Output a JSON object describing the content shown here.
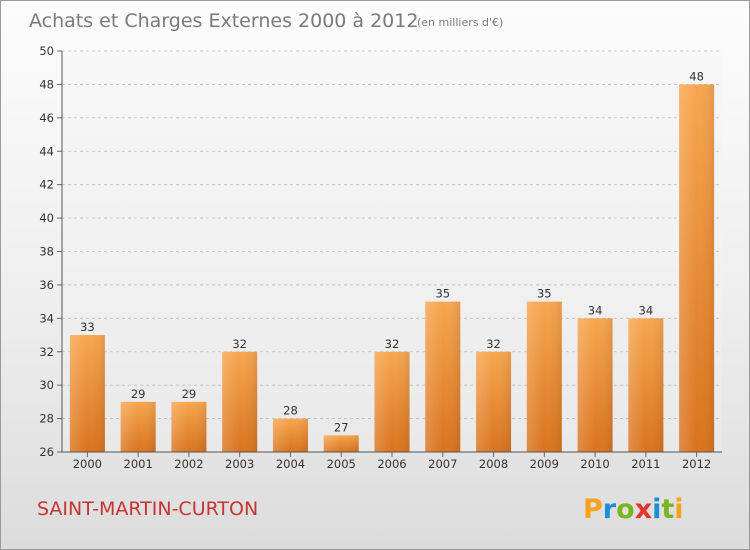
{
  "chart_data": {
    "type": "bar",
    "title": "Achats et Charges Externes 2000 à 2012",
    "subtitle": "(en milliers d'€)",
    "categories": [
      "2000",
      "2001",
      "2002",
      "2003",
      "2004",
      "2005",
      "2006",
      "2007",
      "2008",
      "2009",
      "2010",
      "2011",
      "2012"
    ],
    "values": [
      33,
      29,
      29,
      32,
      28,
      27,
      32,
      35,
      32,
      35,
      34,
      34,
      48
    ],
    "ylim": [
      26,
      50
    ],
    "yticks": [
      "26",
      "28",
      "30",
      "32",
      "34",
      "36",
      "38",
      "40",
      "42",
      "44",
      "46",
      "48",
      "50"
    ],
    "grid": true,
    "bar_color": "#f0933a"
  },
  "footer": {
    "commune": "SAINT-MARTIN-CURTON",
    "logo_letters": [
      "P",
      "r",
      "o",
      "x",
      "i",
      "t",
      "i"
    ],
    "logo_colors": [
      "#f7a21b",
      "#1a8fd6",
      "#7ab51d",
      "#e3342b",
      "#1a8fd6",
      "#7ab51d",
      "#f7a21b"
    ]
  }
}
